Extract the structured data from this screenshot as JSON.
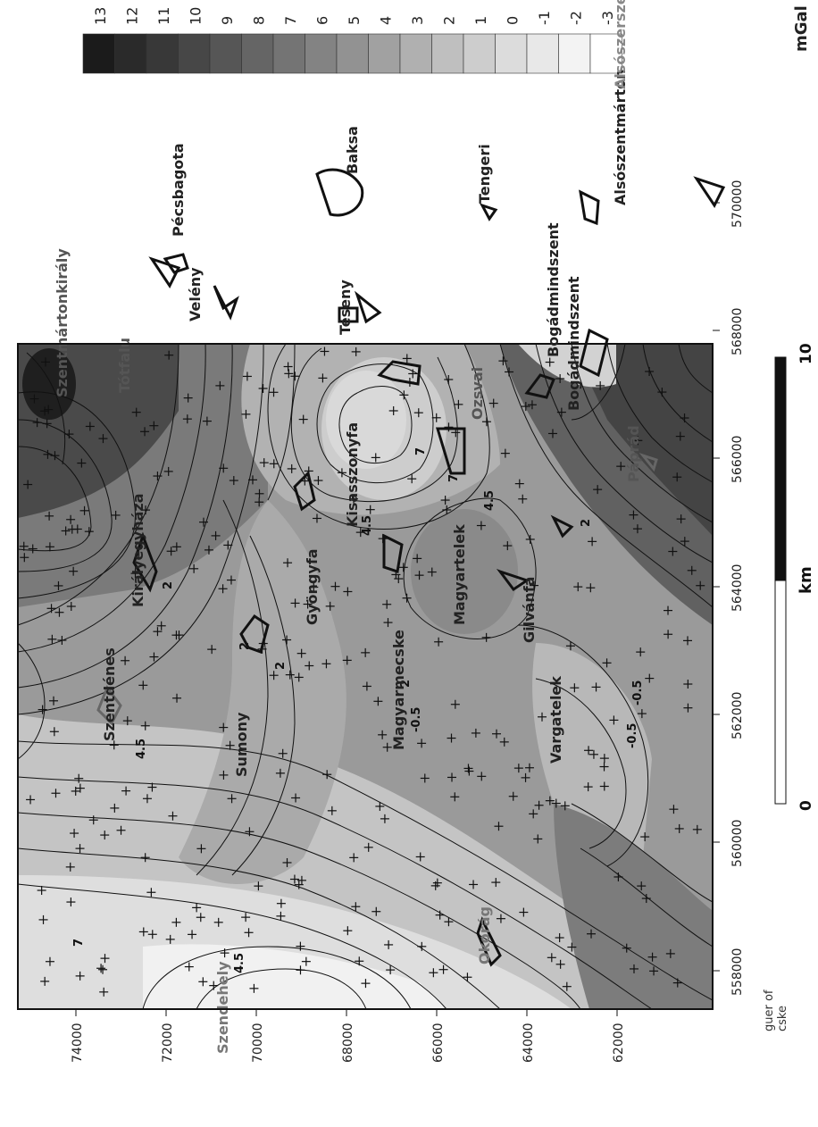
{
  "legend": {
    "unit": "mGal",
    "values": [
      "13",
      "12",
      "11",
      "10",
      "9",
      "8",
      "7",
      "6",
      "5",
      "4",
      "3",
      "2",
      "1",
      "0",
      "-1",
      "-2",
      "-3"
    ],
    "colors": [
      "#1b1b1b",
      "#2a2a2a",
      "#383838",
      "#474747",
      "#565656",
      "#656565",
      "#747474",
      "#838383",
      "#929292",
      "#a1a1a1",
      "#b0b0b0",
      "#bfbfbf",
      "#cdcdcd",
      "#dcdcdc",
      "#e8e8e8",
      "#f3f3f3",
      "#ffffff"
    ]
  },
  "map": {
    "x_ticks": [
      "558000",
      "560000",
      "562000",
      "564000",
      "566000",
      "568000",
      "570000"
    ],
    "y_ticks": [
      "74000",
      "72000",
      "70000",
      "68000",
      "66000",
      "64000",
      "62000"
    ],
    "contour_labels": [
      "7",
      "4.5",
      "4.5",
      "2",
      "2",
      "-0.5",
      "-0.5",
      "4.5",
      "7",
      "2",
      "4.5",
      "7",
      "2",
      "-0.5",
      "2"
    ]
  },
  "places": {
    "inside": [
      "Szendehely",
      "Szentdénes",
      "Királyegyháza",
      "Sumony",
      "Gyöngyfa",
      "Magyarmecske",
      "Magyartelek",
      "Kisasszonyfa",
      "Okorág",
      "Vargatelek",
      "Gilvánfa",
      "Ozsvai",
      "Bogádmindszent",
      "Páprád",
      "Szentmártonkirály",
      "Tótfalu"
    ],
    "outside": [
      "Pécsbagota",
      "Velény",
      "Téseny",
      "Baksa",
      "Tengeri",
      "Alsószentmárton",
      "Bogádmindszent",
      "Alsószerszeg"
    ]
  },
  "scalebar": {
    "start": "0",
    "end": "10",
    "unit": "km"
  },
  "caption": "guer of cske"
}
